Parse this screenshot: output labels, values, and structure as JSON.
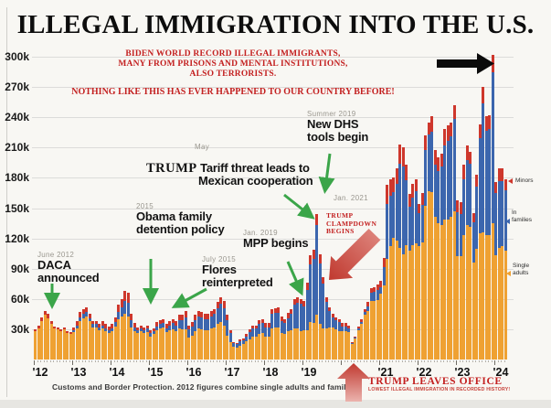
{
  "header": {
    "title": "ILLEGAL IMMIGRATION INTO THE U.S."
  },
  "red_banner": {
    "line1": "BIDEN WORLD RECORD ILLEGAL IMMIGRANTS,",
    "line2": "MANY FROM PRISONS AND MENTAL INSTITUTIONS,",
    "line3": "ALSO TERRORISTS.",
    "line4": "NOTHING LIKE THIS HAS EVER HAPPENED TO OUR COUNTRY BEFORE!"
  },
  "annotations": {
    "daca": {
      "date": "June 2012",
      "text1": "DACA",
      "text2": "announced"
    },
    "obama": {
      "date": "2015",
      "text1": "Obama family",
      "text2": "detention policy"
    },
    "tariff": {
      "date": "May",
      "lead": "TRUMP",
      "text1": "Tariff threat leads to",
      "text2": "Mexican cooperation"
    },
    "flores": {
      "date": "July 2015",
      "text1": "Flores",
      "text2": "reinterpreted"
    },
    "mpp": {
      "date": "Jan. 2019",
      "text1": "MPP begins"
    },
    "dhs": {
      "date": "Summer 2019",
      "text1": "New DHS",
      "text2": "tools begin"
    },
    "jan2021": {
      "date": "Jan. 2021"
    },
    "clampdown": {
      "line1": "TRUMP",
      "line2": "CLAMPDOWN",
      "line3": "BEGINS"
    },
    "leaves": {
      "line1": "TRUMP LEAVES OFFICE",
      "line2": "LOWEST ILLEGAL IMMIGRATION IN RECORDED HISTORY!"
    }
  },
  "legend": {
    "minors": "Minors",
    "families_1": "In",
    "families_2": "families",
    "adults_1": "Single",
    "adults_2": "adults"
  },
  "footer": "Customs and Border Protection. 2012 figures combine single adults and families.",
  "colors": {
    "adults": "#EFA132",
    "families": "#3C66AE",
    "minors": "#CE372C",
    "green_arrow": "#3BA549",
    "red_text": "#C32020",
    "red_arrow_dark": "#C0392F",
    "red_arrow_light": "#E6A39E"
  },
  "chart_data": {
    "type": "bar",
    "stacked": true,
    "title": "ILLEGAL IMMIGRATION INTO THE U.S.",
    "unit": "thousands of apprehensions per month",
    "start_month": "2012-01",
    "end_month": "2024-04",
    "months": 148,
    "ylim": [
      0,
      310
    ],
    "ytick_step": 30,
    "yticks": [
      "30k",
      "60k",
      "90k",
      "120k",
      "150k",
      "180k",
      "210k",
      "240k",
      "270k",
      "300k"
    ],
    "years": [
      {
        "label": "'12",
        "year": 2012
      },
      {
        "label": "'13",
        "year": 2013
      },
      {
        "label": "'14",
        "year": 2014
      },
      {
        "label": "'15",
        "year": 2015
      },
      {
        "label": "'16",
        "year": 2016
      },
      {
        "label": "'17",
        "year": 2017
      },
      {
        "label": "'18",
        "year": 2018
      },
      {
        "label": "'19",
        "year": 2019
      },
      {
        "label": "'21",
        "year": 2021
      },
      {
        "label": "'22",
        "year": 2022
      },
      {
        "label": "'23",
        "year": 2023
      },
      {
        "label": "'24",
        "year": 2024
      }
    ],
    "series": [
      {
        "name": "Single adults",
        "color": "#EFA132",
        "values": [
          28,
          31,
          38,
          44,
          41,
          35,
          31,
          30,
          28,
          30,
          26,
          25,
          27,
          31,
          38,
          41,
          43,
          38,
          32,
          32,
          29,
          31,
          28,
          26,
          28,
          33,
          40,
          43,
          45,
          43,
          32,
          28,
          26,
          28,
          26,
          27,
          23,
          25,
          29,
          31,
          32,
          27,
          29,
          30,
          28,
          31,
          30,
          30,
          22,
          24,
          28,
          31,
          30,
          29,
          29,
          31,
          32,
          35,
          37,
          34,
          24,
          17,
          13,
          12,
          14,
          15,
          18,
          20,
          23,
          23,
          25,
          26,
          23,
          23,
          31,
          32,
          32,
          26,
          25,
          28,
          29,
          31,
          31,
          28,
          29,
          29,
          37,
          36,
          44,
          35,
          31,
          31,
          32,
          32,
          30,
          28,
          28,
          28,
          27,
          15,
          21,
          29,
          35,
          44,
          48,
          58,
          58,
          59,
          65,
          73,
          100,
          112,
          121,
          118,
          111,
          104,
          113,
          108,
          113,
          115,
          112,
          116,
          152,
          167,
          166,
          141,
          135,
          133,
          139,
          139,
          141,
          147,
          102,
          102,
          123,
          133,
          131,
          96,
          110,
          125,
          126,
          123,
          123,
          135,
          103,
          111,
          112,
          108
        ]
      },
      {
        "name": "In families",
        "color": "#3C66AE",
        "values": [
          0,
          0,
          0,
          0,
          0,
          0,
          0,
          0,
          0,
          0,
          0,
          0,
          2,
          3,
          4,
          4,
          4,
          3,
          3,
          3,
          3,
          3,
          3,
          3,
          3,
          4,
          7,
          9,
          13,
          13,
          7,
          4,
          3,
          3,
          3,
          4,
          3,
          3,
          4,
          4,
          4,
          4,
          5,
          6,
          6,
          8,
          9,
          12,
          8,
          9,
          11,
          12,
          12,
          11,
          11,
          12,
          13,
          16,
          18,
          17,
          15,
          9,
          3,
          3,
          4,
          4,
          5,
          7,
          8,
          8,
          10,
          10,
          9,
          9,
          14,
          14,
          14,
          12,
          11,
          13,
          16,
          23,
          25,
          27,
          24,
          40,
          57,
          64,
          89,
          60,
          44,
          26,
          16,
          10,
          9,
          9,
          5,
          5,
          4,
          1,
          1,
          2,
          2,
          3,
          5,
          8,
          9,
          10,
          7,
          19,
          54,
          50,
          45,
          56,
          83,
          87,
          65,
          43,
          47,
          52,
          33,
          37,
          56,
          56,
          60,
          52,
          52,
          58,
          73,
          78,
          80,
          91,
          44,
          42,
          56,
          65,
          63,
          40,
          61,
          94,
          128,
          104,
          105,
          150,
          62,
          66,
          65,
          60
        ]
      },
      {
        "name": "Minors",
        "color": "#CE372C",
        "values": [
          2,
          3,
          4,
          4,
          4,
          3,
          2,
          2,
          2,
          2,
          2,
          2,
          3,
          4,
          5,
          5,
          5,
          4,
          3,
          3,
          3,
          4,
          4,
          4,
          4,
          5,
          7,
          8,
          10,
          10,
          6,
          4,
          3,
          3,
          3,
          3,
          3,
          3,
          4,
          4,
          4,
          4,
          4,
          4,
          4,
          5,
          5,
          6,
          4,
          4,
          5,
          5,
          5,
          5,
          5,
          5,
          5,
          6,
          7,
          7,
          5,
          3,
          1,
          1,
          2,
          2,
          2,
          3,
          3,
          3,
          4,
          4,
          4,
          4,
          5,
          5,
          6,
          5,
          4,
          5,
          5,
          6,
          6,
          5,
          5,
          7,
          9,
          9,
          11,
          9,
          7,
          5,
          4,
          3,
          3,
          3,
          3,
          3,
          3,
          1,
          1,
          2,
          3,
          3,
          4,
          5,
          5,
          5,
          6,
          9,
          19,
          17,
          14,
          15,
          19,
          19,
          15,
          13,
          14,
          12,
          9,
          12,
          14,
          12,
          15,
          15,
          13,
          13,
          16,
          15,
          14,
          14,
          12,
          12,
          14,
          14,
          12,
          9,
          12,
          14,
          16,
          14,
          14,
          17,
          11,
          12,
          12,
          11
        ]
      }
    ],
    "legend_position": "right",
    "grid": true
  }
}
